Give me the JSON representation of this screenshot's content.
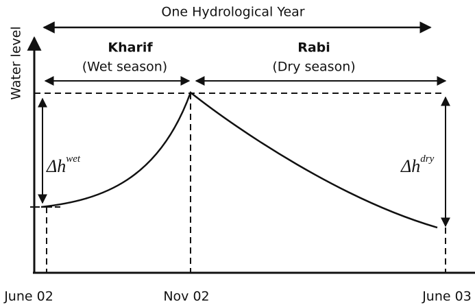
{
  "title": "One Hydrological Year",
  "y_axis_label": "Water level",
  "seasons": [
    {
      "name": "Kharif",
      "description": "(Wet season)"
    },
    {
      "name": "Rabi",
      "description": "(Dry season)"
    }
  ],
  "delta_wet": {
    "base": "Δh",
    "sup": "wet"
  },
  "delta_dry": {
    "base": "Δh",
    "sup": "dry"
  },
  "x_labels": [
    "June 02",
    "Nov 02",
    "June 03"
  ]
}
